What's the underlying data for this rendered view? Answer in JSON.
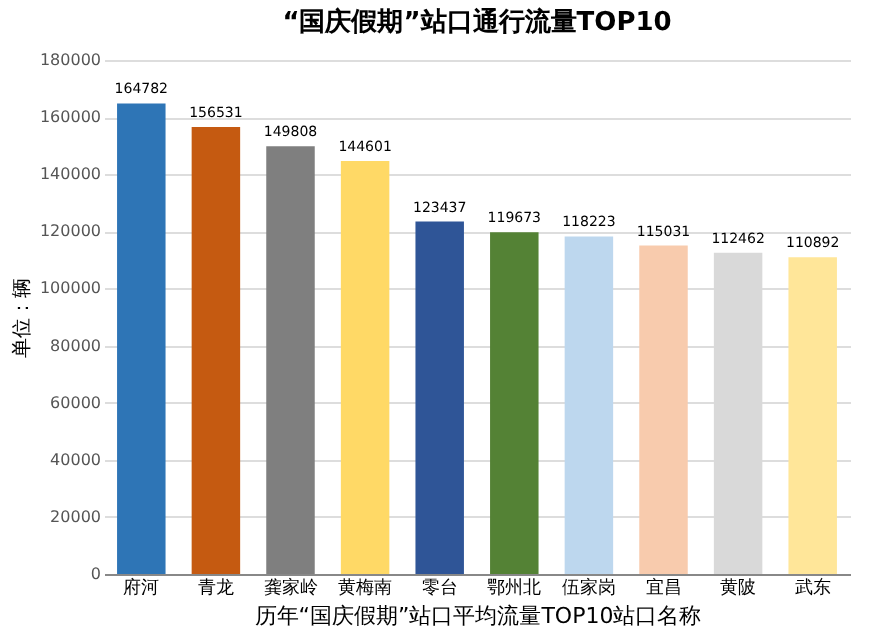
{
  "chart_data": {
    "type": "bar",
    "title": "“国庆假期”站口通行流量TOP10",
    "xlabel": "历年“国庆假期”站口平均流量TOP10站口名称",
    "ylabel": "单位：辆",
    "categories": [
      "府河",
      "青龙",
      "龚家岭",
      "黄梅南",
      "零台",
      "鄂州北",
      "伍家岗",
      "宜昌",
      "黄陂",
      "武东"
    ],
    "values": [
      164782,
      156531,
      149808,
      144601,
      123437,
      119673,
      118223,
      115031,
      112462,
      110892
    ],
    "colors": [
      "#2e75b6",
      "#c55a11",
      "#7f7f7f",
      "#ffd966",
      "#2f5597",
      "#548235",
      "#bdd7ee",
      "#f8cbad",
      "#d9d9d9",
      "#ffe699"
    ],
    "ylim": [
      0,
      180000
    ],
    "yticks": [
      0,
      20000,
      40000,
      60000,
      80000,
      100000,
      120000,
      140000,
      160000,
      180000
    ],
    "grid": "y",
    "data_labels": true
  }
}
